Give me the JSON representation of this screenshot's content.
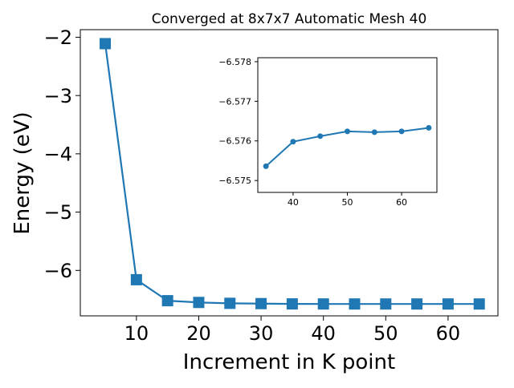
{
  "colors": {
    "series": "#1f77b4",
    "axis": "#000000",
    "background": "#ffffff"
  },
  "chart_data": [
    {
      "type": "line",
      "title": "Converged at 8x7x7 Automatic Mesh 40",
      "xlabel": "Increment in K point",
      "ylabel": "Energy (eV)",
      "xlim": [
        1,
        68
      ],
      "ylim": [
        -6.78,
        -1.87
      ],
      "xticks": [
        10,
        20,
        30,
        40,
        50,
        60
      ],
      "yticks": [
        -2,
        -3,
        -4,
        -5,
        -6
      ],
      "ytick_labels": [
        "−2",
        "−3",
        "−4",
        "−5",
        "−6"
      ],
      "marker": "square",
      "grid": false,
      "series": [
        {
          "x": [
            5,
            10,
            15,
            20,
            25,
            30,
            35,
            40,
            45,
            50,
            55,
            60,
            65
          ],
          "y": [
            -2.11,
            -6.16,
            -6.52,
            -6.55,
            -6.565,
            -6.57,
            -6.575,
            -6.576,
            -6.5762,
            -6.5763,
            -6.5763,
            -6.5763,
            -6.5764
          ]
        }
      ]
    },
    {
      "type": "line",
      "title": "",
      "xlabel": "",
      "ylabel": "",
      "xlim": [
        33.5,
        66.5
      ],
      "ylim": [
        -6.5747,
        -6.5781
      ],
      "y_inverted": true,
      "xticks": [
        40,
        50,
        60
      ],
      "yticks": [
        -6.578,
        -6.577,
        -6.576,
        -6.575
      ],
      "ytick_labels": [
        "−6.578",
        "−6.577",
        "−6.576",
        "−6.575"
      ],
      "marker": "circle",
      "grid": false,
      "series": [
        {
          "x": [
            35,
            40,
            45,
            50,
            55,
            60,
            65
          ],
          "y": [
            -6.57536,
            -6.57598,
            -6.57612,
            -6.57624,
            -6.57622,
            -6.57624,
            -6.57633
          ]
        }
      ]
    }
  ]
}
